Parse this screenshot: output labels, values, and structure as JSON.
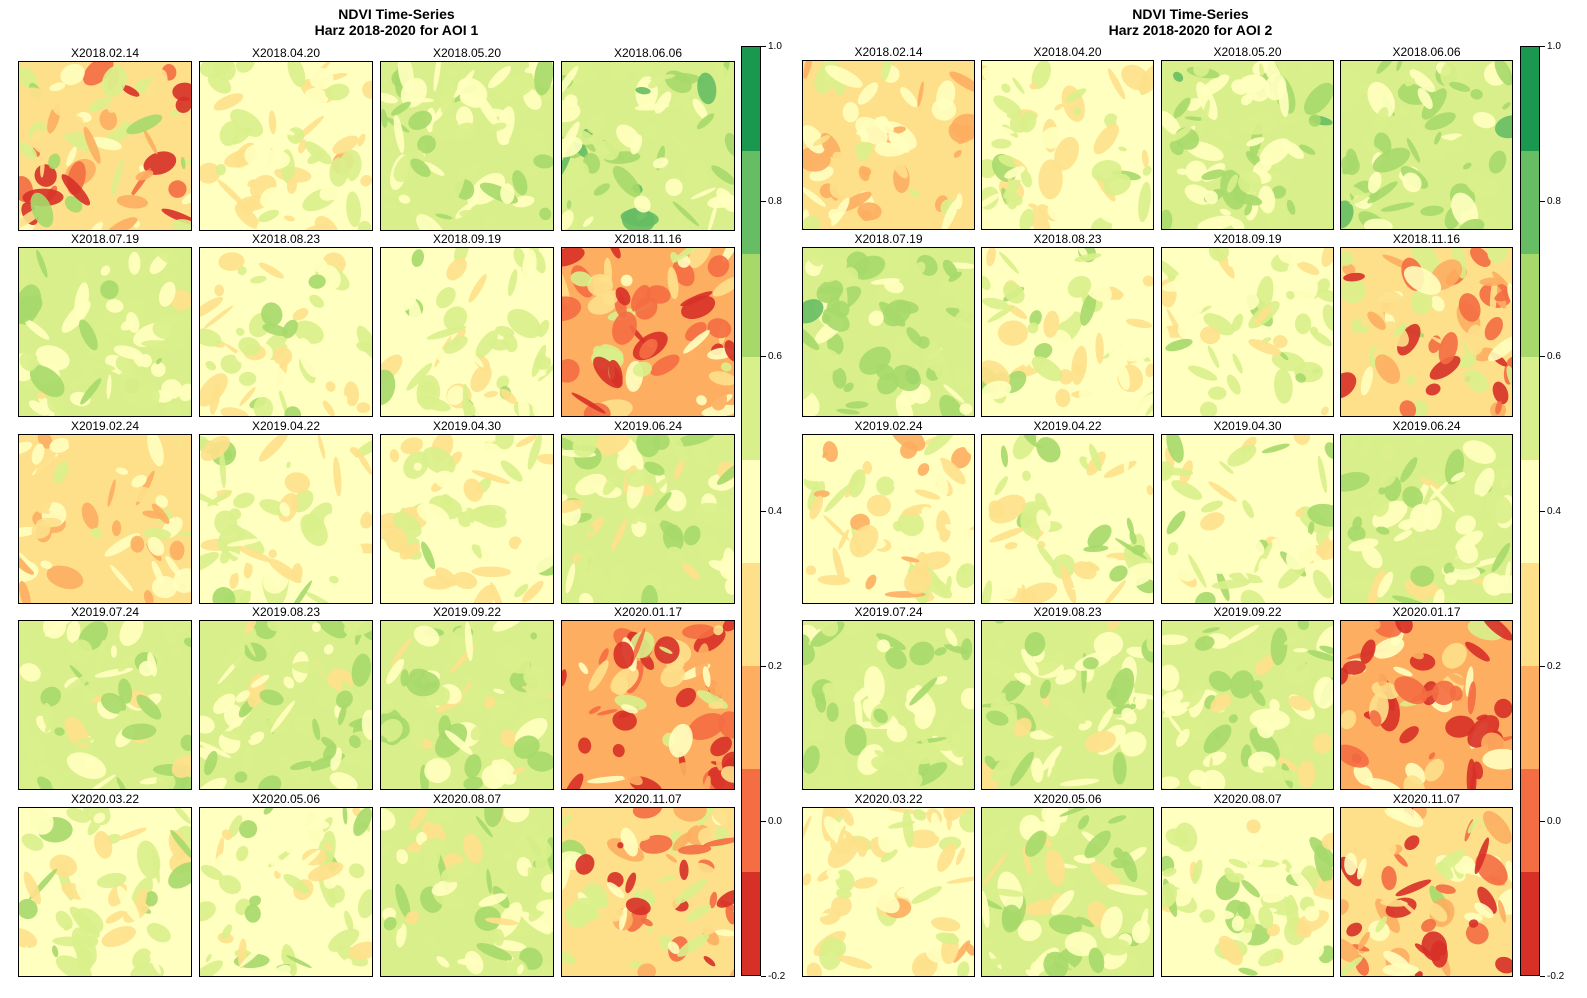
{
  "chart_data": [
    {
      "type": "heatmap",
      "title": "NDVI Time-Series",
      "subtitle": "Harz 2018-2020 for AOI 1",
      "panels": [
        "X2018.02.14",
        "X2018.04.20",
        "X2018.05.20",
        "X2018.06.06",
        "X2018.07.19",
        "X2018.08.23",
        "X2018.09.19",
        "X2018.11.16",
        "X2019.02.24",
        "X2019.04.22",
        "X2019.04.30",
        "X2019.06.24",
        "X2019.07.24",
        "X2019.08.23",
        "X2019.09.22",
        "X2020.01.17",
        "X2020.03.22",
        "X2020.05.06",
        "X2020.08.07",
        "X2020.11.07"
      ],
      "mean_ndvi": [
        0.3,
        0.44,
        0.62,
        0.68,
        0.6,
        0.5,
        0.52,
        0.18,
        0.36,
        0.52,
        0.52,
        0.55,
        0.6,
        0.58,
        0.57,
        0.14,
        0.52,
        0.54,
        0.58,
        0.26
      ],
      "legend": {
        "ticks": [
          "1.0",
          "0.8",
          "0.6",
          "0.4",
          "0.2",
          "0.0",
          "-0.2"
        ],
        "range": [
          -0.2,
          1.0
        ],
        "placement": "right"
      }
    },
    {
      "type": "heatmap",
      "title": "NDVI Time-Series",
      "subtitle": "Harz 2018-2020 for AOI 2",
      "panels": [
        "X2018.02.14",
        "X2018.04.20",
        "X2018.05.20",
        "X2018.06.06",
        "X2018.07.19",
        "X2018.08.23",
        "X2018.09.19",
        "X2018.11.16",
        "X2019.02.24",
        "X2019.04.22",
        "X2019.04.30",
        "X2019.06.24",
        "X2019.07.24",
        "X2019.08.23",
        "X2019.09.22",
        "X2020.01.17",
        "X2020.03.22",
        "X2020.05.06",
        "X2020.08.07",
        "X2020.11.07"
      ],
      "mean_ndvi": [
        0.38,
        0.5,
        0.64,
        0.66,
        0.66,
        0.52,
        0.52,
        0.26,
        0.42,
        0.53,
        0.53,
        0.58,
        0.62,
        0.58,
        0.6,
        0.15,
        0.45,
        0.55,
        0.54,
        0.28
      ],
      "legend": {
        "ticks": [
          "1.0",
          "0.8",
          "0.6",
          "0.4",
          "0.2",
          "0.0",
          "-0.2"
        ],
        "range": [
          -0.2,
          1.0
        ],
        "placement": "right"
      }
    }
  ],
  "colors": {
    "palette": [
      "#d73027",
      "#f46d43",
      "#fdae61",
      "#fee08b",
      "#ffffbf",
      "#d9ef8b",
      "#a6d96a",
      "#66bd63",
      "#1a9850"
    ],
    "breaks": [
      -0.2,
      -0.05,
      0.1,
      0.25,
      0.4,
      0.55,
      0.7,
      0.85,
      1.0
    ]
  }
}
